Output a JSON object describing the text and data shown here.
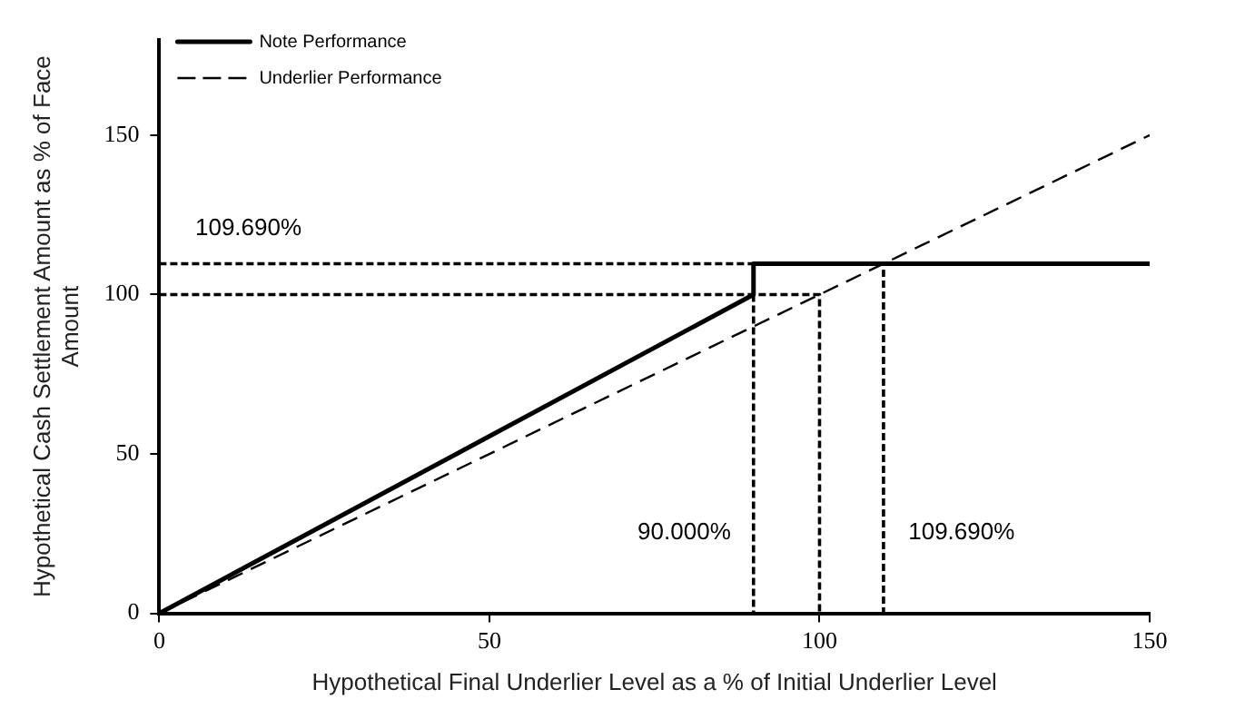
{
  "chart_data": {
    "type": "line",
    "xlabel": "Hypothetical Final Underlier Level as a % of Initial Underlier Level",
    "ylabel": "Hypothetical Cash Settlement Amount as % of Face Amount",
    "xlim": [
      0,
      150
    ],
    "xticks": [
      0,
      50,
      100,
      150
    ],
    "ylim": [
      0,
      180
    ],
    "yticks": [
      0,
      50,
      100,
      150
    ],
    "grid": false,
    "legend": "top left",
    "marker": "none",
    "series": [
      {
        "name": "Note Performance",
        "color": "#000000",
        "line_style": "solid",
        "x": [
          0,
          90,
          90,
          150
        ],
        "values": [
          0,
          100,
          109.69,
          109.69
        ]
      },
      {
        "name": "Underlier Performance",
        "color": "#000000",
        "line_style": "dashed",
        "x": [
          0,
          150
        ],
        "values": [
          0,
          150
        ]
      },
      {
        "color": "#000000",
        "line_style": "dotted",
        "x": [
          0,
          109.69,
          109.69
        ],
        "values": [
          109.69,
          109.69,
          0
        ]
      },
      {
        "color": "#000000",
        "line_style": "dotted",
        "x": [
          0,
          100,
          100
        ],
        "values": [
          100,
          100,
          0
        ]
      },
      {
        "color": "#000000",
        "line_style": "dotted",
        "x": [
          90,
          90
        ],
        "values": [
          100,
          0
        ]
      }
    ],
    "annotations": [
      "109.690%",
      "90.000%",
      "109.690%"
    ]
  }
}
